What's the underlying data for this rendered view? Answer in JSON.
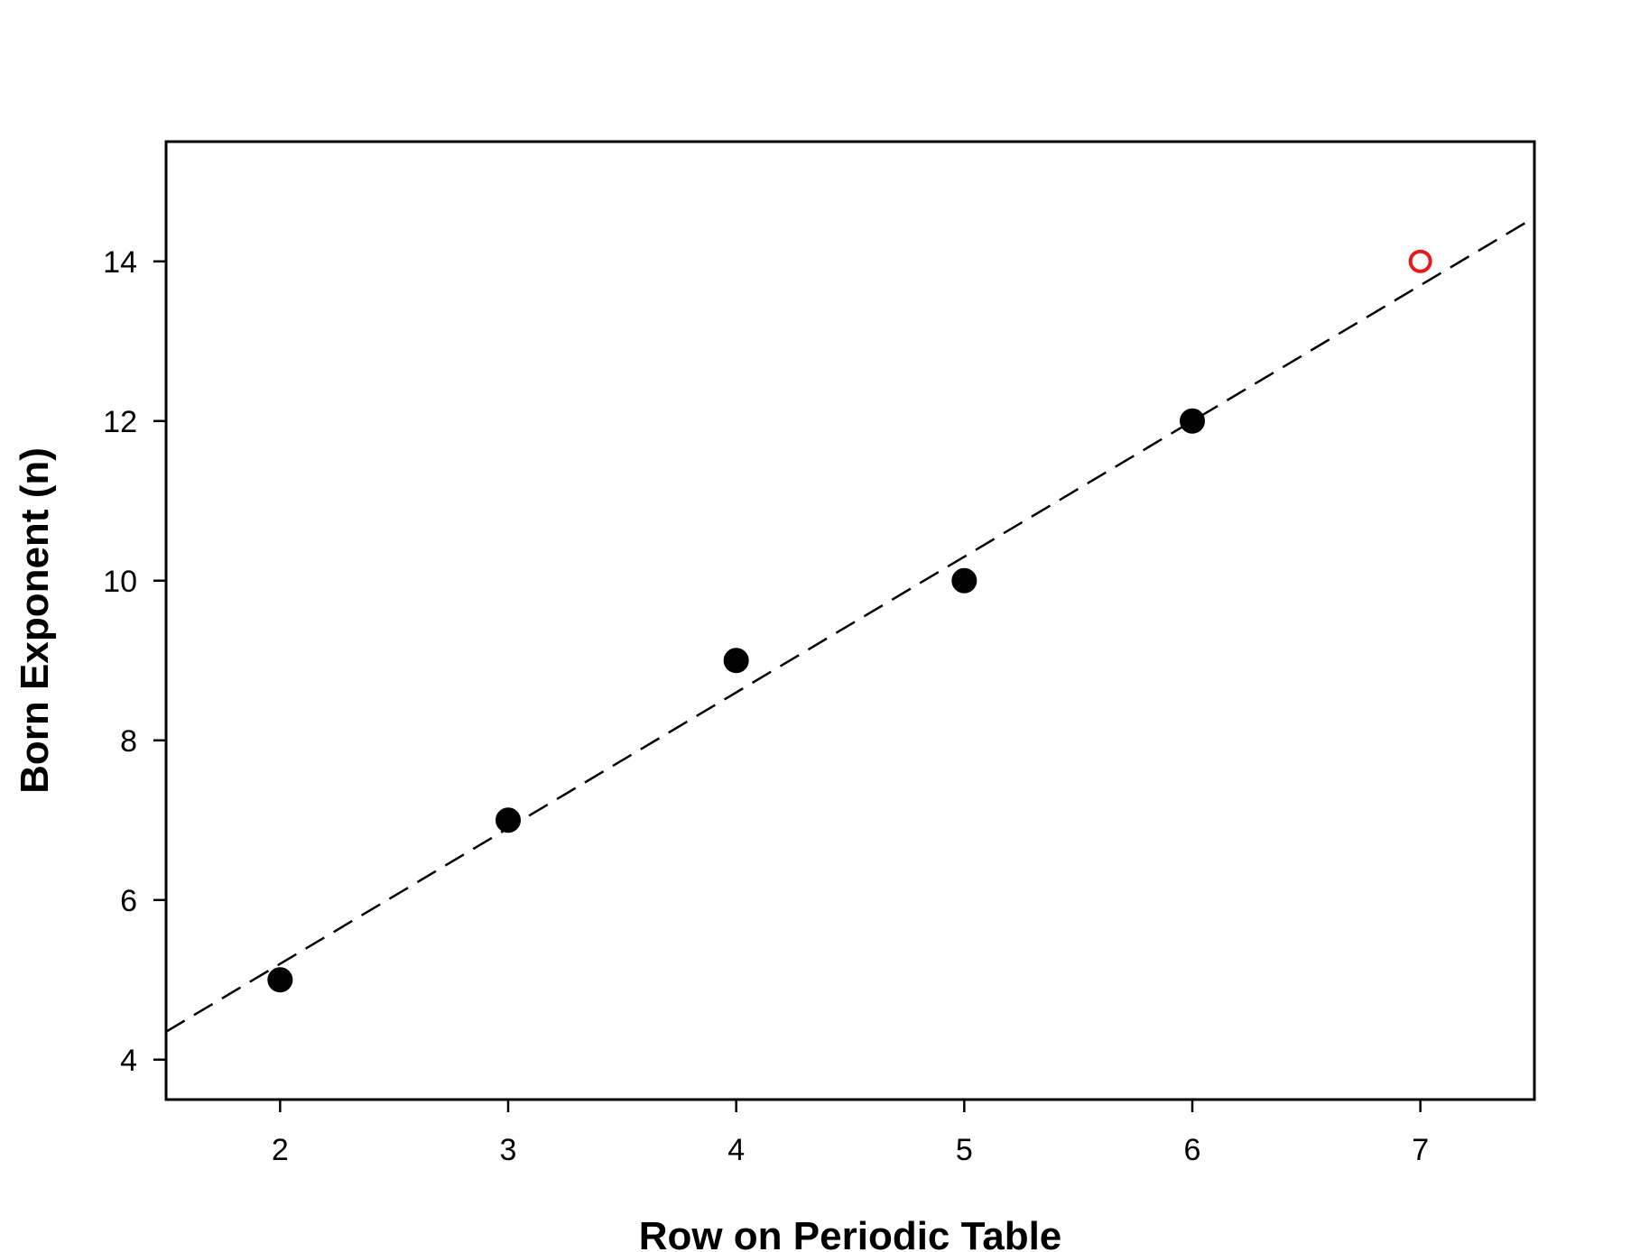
{
  "chart_data": {
    "type": "scatter",
    "title": "",
    "xlabel": "Row on Periodic Table",
    "ylabel": "Born Exponent (n)",
    "xlim": [
      1.5,
      7.5
    ],
    "ylim": [
      3.5,
      15.5
    ],
    "xticks": [
      2,
      3,
      4,
      5,
      6,
      7
    ],
    "yticks": [
      4,
      6,
      8,
      10,
      12,
      14
    ],
    "grid": false,
    "legend": "none",
    "series": [
      {
        "marker": "filled-circle",
        "color": "#000000",
        "points": [
          {
            "x": 2,
            "y": 5
          },
          {
            "x": 3,
            "y": 7
          },
          {
            "x": 4,
            "y": 9
          },
          {
            "x": 5,
            "y": 10
          },
          {
            "x": 6,
            "y": 12
          }
        ]
      },
      {
        "marker": "open-circle",
        "color": "#e41a1c",
        "points": [
          {
            "x": 7,
            "y": 14
          }
        ]
      }
    ],
    "fit_line": {
      "style": "dashed",
      "color": "#000000",
      "slope": 1.7,
      "intercept": 1.8
    }
  }
}
